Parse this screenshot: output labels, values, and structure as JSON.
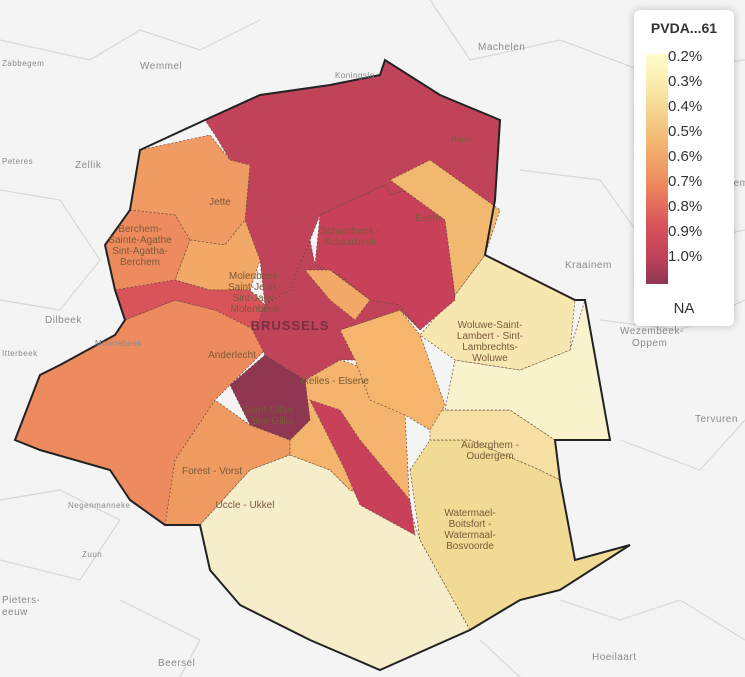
{
  "legend": {
    "title": "PVDA...61",
    "ticks": [
      "0.2%",
      "0.3%",
      "0.4%",
      "0.5%",
      "0.6%",
      "0.7%",
      "0.8%",
      "0.9%",
      "1.0%"
    ],
    "na": "NA"
  },
  "places": [
    "Machelen",
    "Wemmel",
    "Koningslo",
    "Zellik",
    "Zaventem",
    "Kraainem",
    "Dilbeek",
    "Itterbeek",
    "Moortebeek",
    "Wezembeek-",
    "Oppem",
    "Tervuren",
    "Negenmanneke",
    "Zuun",
    "Pieters-",
    "eeuw",
    "Beersel",
    "Hoeilaart",
    "Haren",
    "BRUSSELS",
    "Zabbegem",
    "Peteres"
  ],
  "communes": [
    {
      "lines": [
        "Jette"
      ]
    },
    {
      "lines": [
        "Berchem-",
        "Sainte-Agathe",
        "Sint-Agatha-",
        "Berchem"
      ]
    },
    {
      "lines": [
        "Molenbeek-",
        "Saint-Jean -",
        "Sint-Jans-",
        "Molenbeek"
      ]
    },
    {
      "lines": [
        "Schaerbeek -",
        "Schaarbeek"
      ]
    },
    {
      "lines": [
        "Evere"
      ]
    },
    {
      "lines": [
        "Woluwe-Saint-",
        "Lambert - Sint-",
        "Lambrechts-",
        "Woluwe"
      ]
    },
    {
      "lines": [
        "Anderlecht"
      ]
    },
    {
      "lines": [
        "Ixelles - Elsene"
      ]
    },
    {
      "lines": [
        "Saint-Gilles -",
        "Sint-Gillis"
      ]
    },
    {
      "lines": [
        "Auderghem -",
        "Oudergem"
      ]
    },
    {
      "lines": [
        "Forest - Vorst"
      ]
    },
    {
      "lines": [
        "Uccle - Ukkel"
      ]
    },
    {
      "lines": [
        "Watermael-",
        "Boitsfort -",
        "Watermaal-",
        "Bosvoorde"
      ]
    }
  ]
}
